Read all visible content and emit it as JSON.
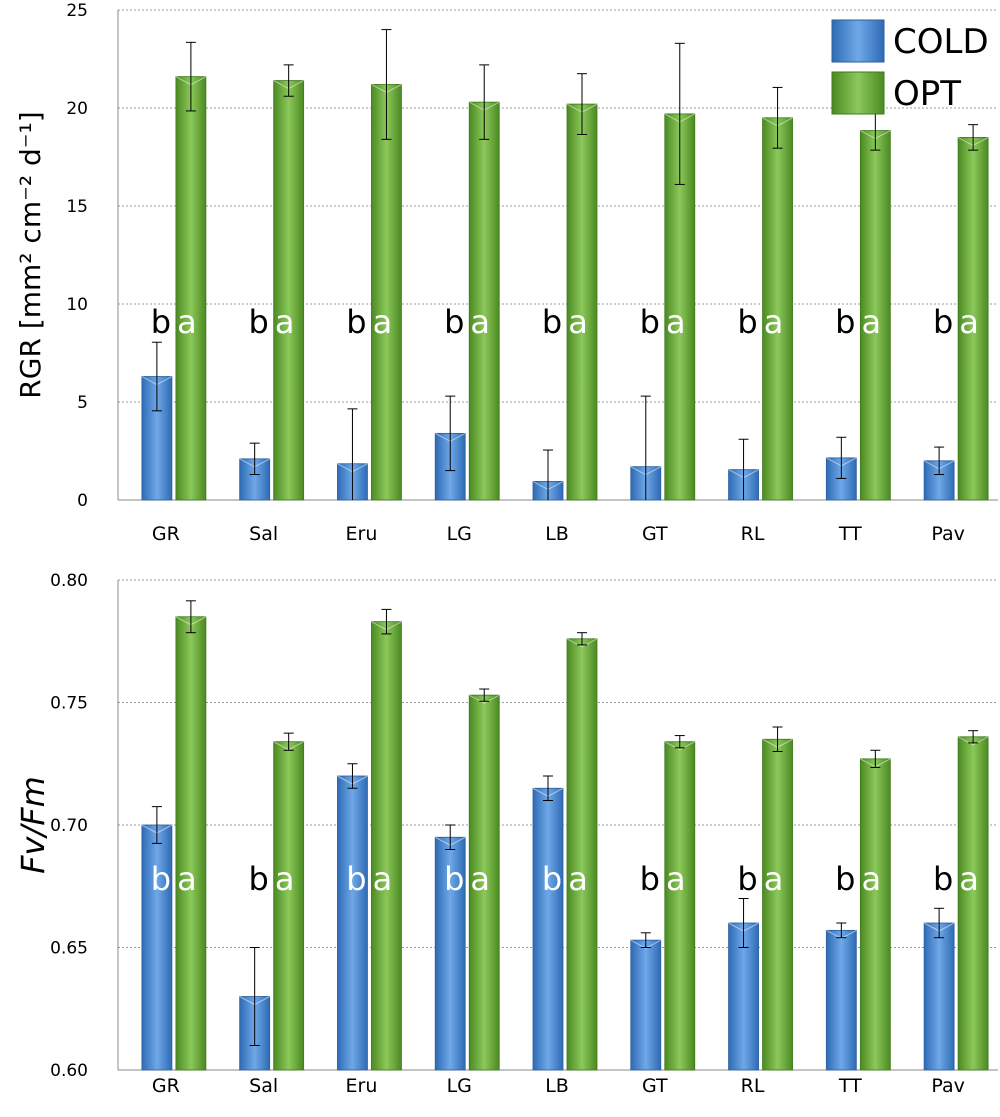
{
  "chart_data": [
    {
      "type": "bar",
      "ylabel": "RGR [mm² cm⁻² d⁻¹]",
      "ylim": [
        0,
        25
      ],
      "yticks": [
        "0",
        "5",
        "10",
        "15",
        "20",
        "25"
      ],
      "grid": true,
      "legend_placement": "top-right",
      "categories": [
        "GR",
        "Sal",
        "Eru",
        "LG",
        "LB",
        "GT",
        "RL",
        "TT",
        "Pav"
      ],
      "series": [
        {
          "name": "COLD",
          "color": "#4a8bd6",
          "values": [
            6.3,
            2.1,
            1.85,
            3.4,
            0.95,
            1.7,
            1.55,
            2.15,
            2.0
          ],
          "errors": [
            1.75,
            0.8,
            2.8,
            1.9,
            1.6,
            3.6,
            1.55,
            1.05,
            0.7
          ],
          "letters": [
            "b",
            "b",
            "b",
            "b",
            "b",
            "b",
            "b",
            "b",
            "b"
          ]
        },
        {
          "name": "OPT",
          "color": "#6aab3b",
          "values": [
            21.6,
            21.4,
            21.2,
            20.3,
            20.2,
            19.7,
            19.5,
            18.85,
            18.5
          ],
          "errors": [
            1.75,
            0.8,
            2.8,
            1.9,
            1.55,
            3.6,
            1.55,
            1.0,
            0.65
          ],
          "letters": [
            "a",
            "a",
            "a",
            "a",
            "a",
            "a",
            "a",
            "a",
            "a"
          ]
        }
      ]
    },
    {
      "type": "bar",
      "ylabel": "Fv/Fm",
      "ylim": [
        0.6,
        0.8
      ],
      "yticks": [
        "0.60",
        "0.65",
        "0.70",
        "0.75",
        "0.80"
      ],
      "grid": true,
      "categories": [
        "GR",
        "Sal",
        "Eru",
        "LG",
        "LB",
        "GT",
        "RL",
        "TT",
        "Pav"
      ],
      "series": [
        {
          "name": "COLD",
          "color": "#4a8bd6",
          "values": [
            0.7,
            0.63,
            0.72,
            0.695,
            0.715,
            0.653,
            0.66,
            0.657,
            0.66
          ],
          "errors": [
            0.0075,
            0.02,
            0.005,
            0.005,
            0.005,
            0.003,
            0.01,
            0.003,
            0.006
          ],
          "letters": [
            "b",
            "b",
            "b",
            "b",
            "b",
            "b",
            "b",
            "b",
            "b"
          ]
        },
        {
          "name": "OPT",
          "color": "#6aab3b",
          "values": [
            0.785,
            0.734,
            0.783,
            0.753,
            0.776,
            0.734,
            0.735,
            0.727,
            0.736
          ],
          "errors": [
            0.0065,
            0.0035,
            0.005,
            0.0025,
            0.0025,
            0.0025,
            0.005,
            0.0035,
            0.0025
          ],
          "letters": [
            "a",
            "a",
            "a",
            "a",
            "a",
            "a",
            "a",
            "a",
            "a"
          ]
        }
      ]
    }
  ]
}
